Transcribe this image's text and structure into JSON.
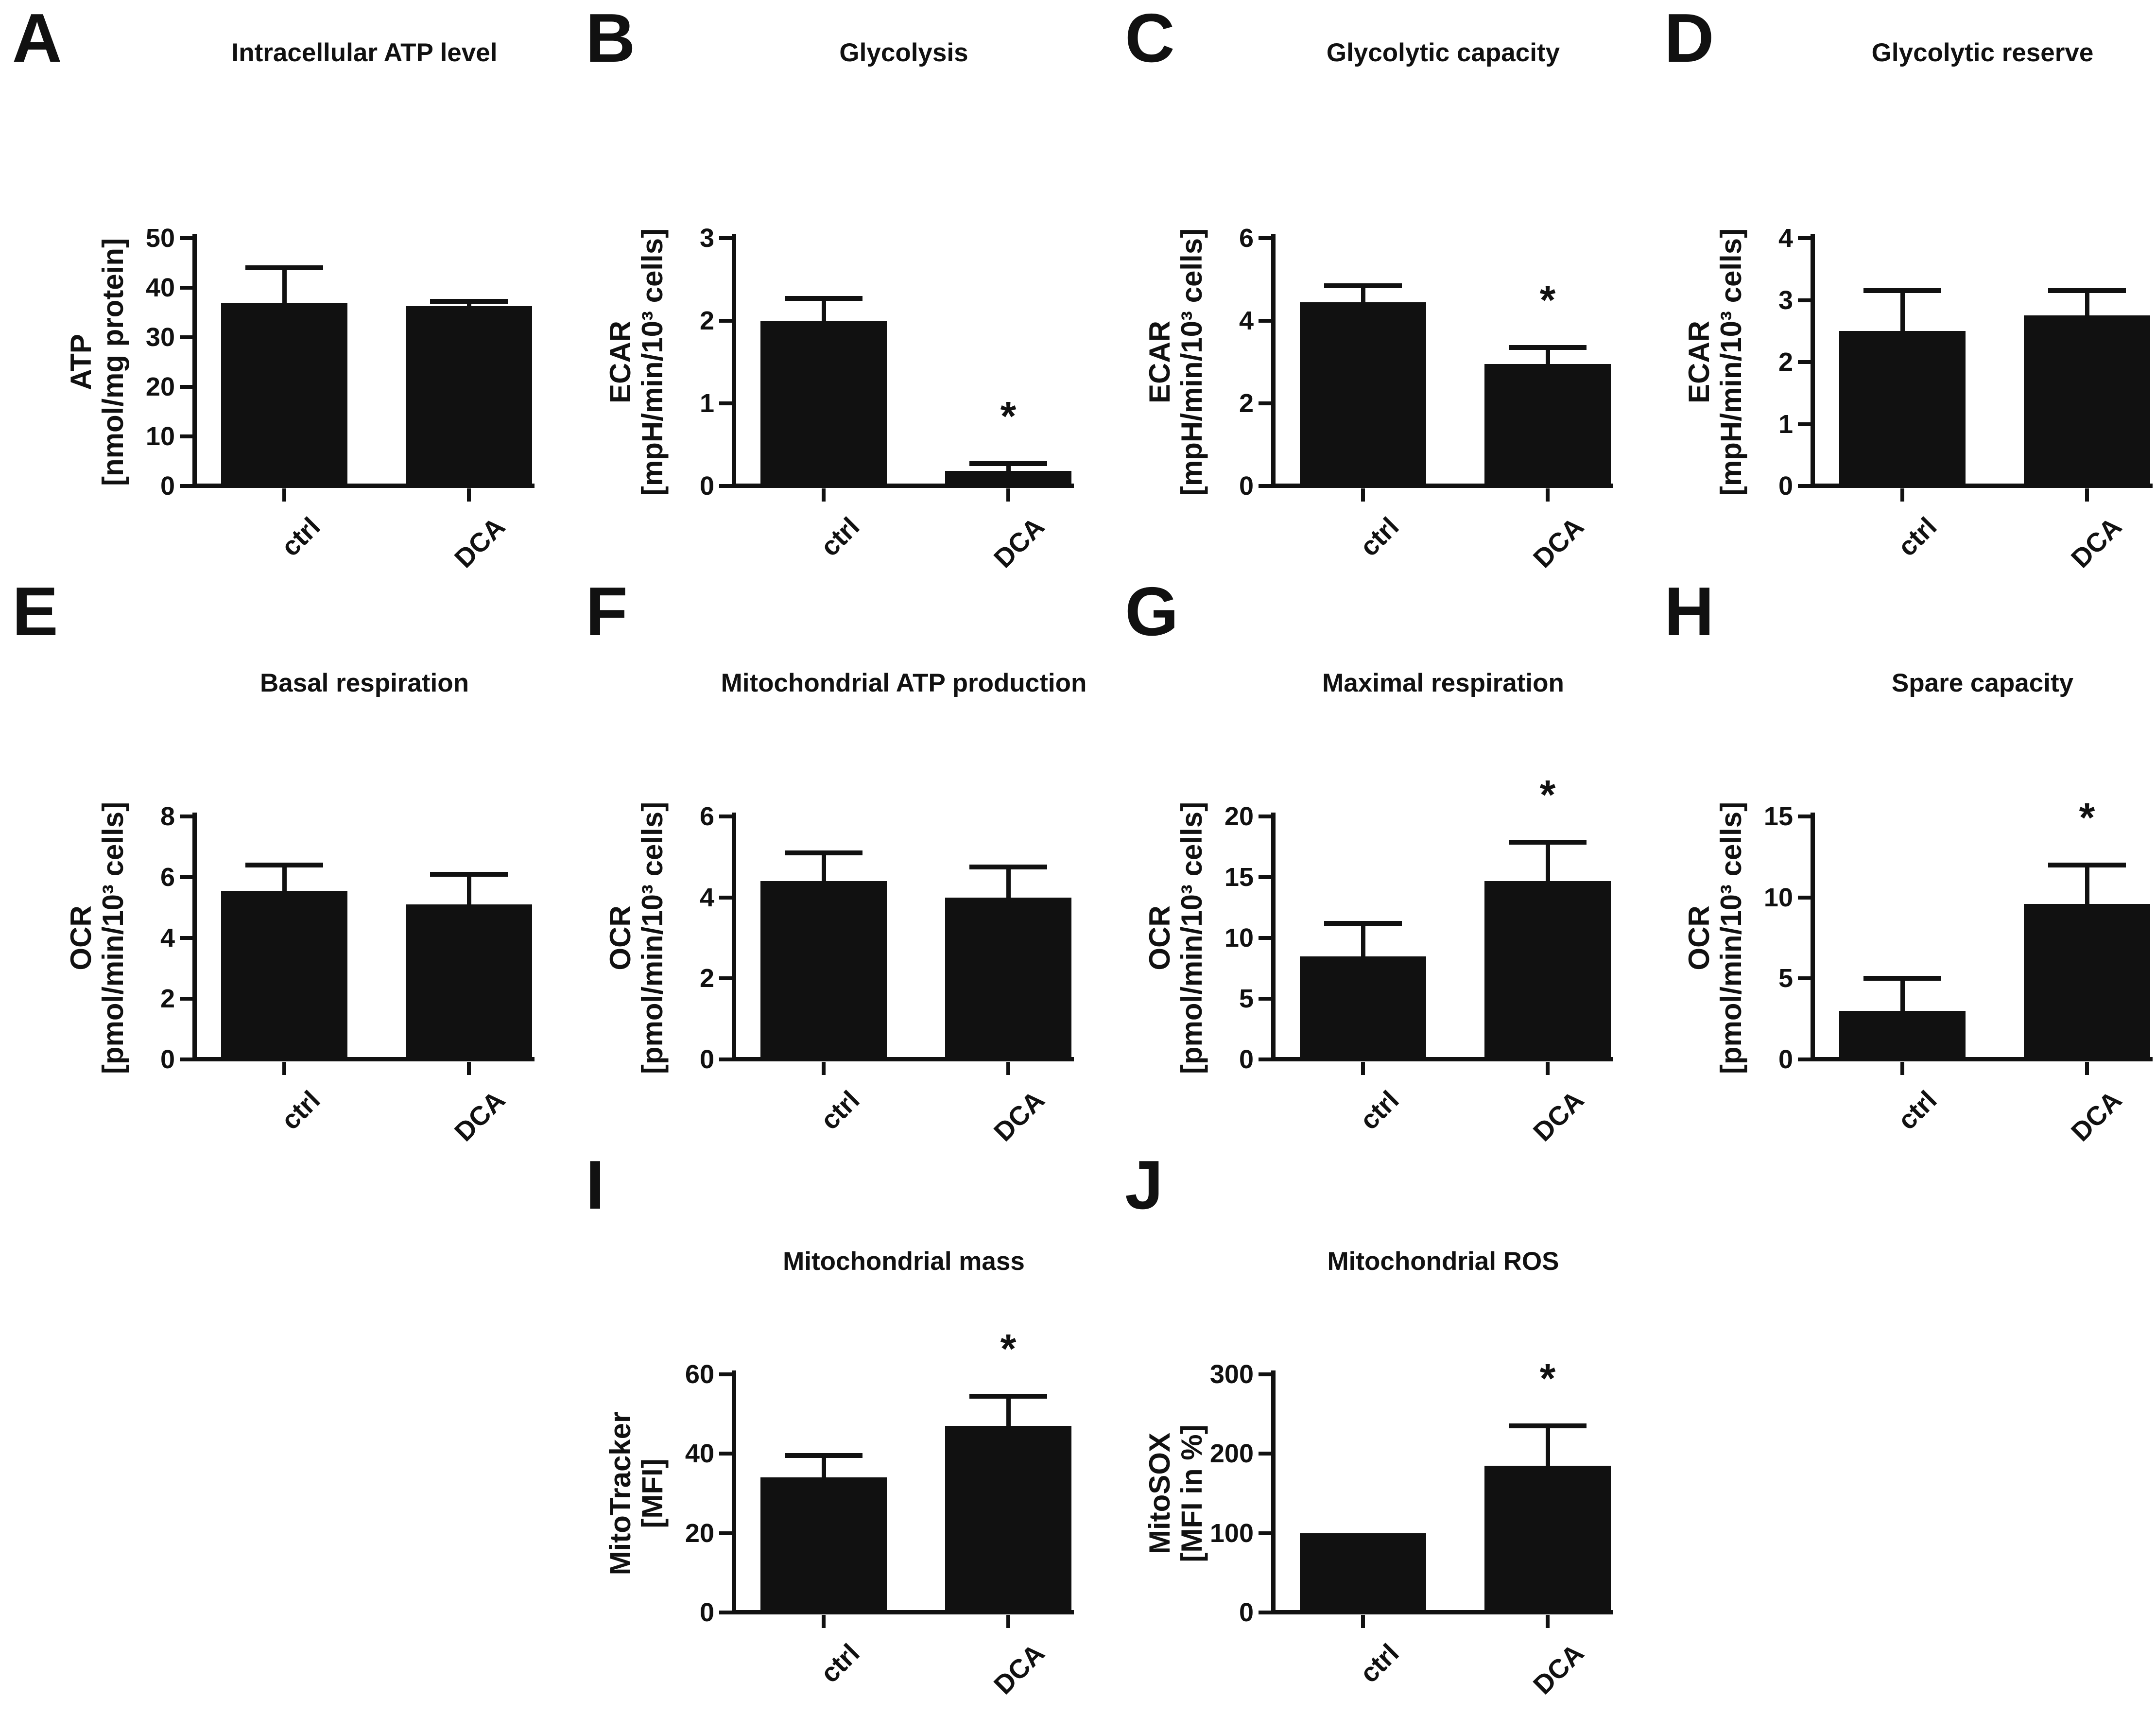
{
  "figure": {
    "background": "#ffffff",
    "ink": "#111111"
  },
  "categories": [
    "ctrl",
    "DCA"
  ],
  "chart_data": [
    {
      "panel": "A",
      "type": "bar",
      "title": "Intracellular ATP level",
      "ylabel": "ATP",
      "ylabel_unit": "[nmol/mg protein]",
      "ylim": [
        0,
        50
      ],
      "yticks": [
        0,
        10,
        20,
        30,
        40,
        50
      ],
      "grid": false,
      "categories": [
        "ctrl",
        "DCA"
      ],
      "bars": [
        {
          "category": "ctrl",
          "value": 37,
          "err": 7,
          "sig": ""
        },
        {
          "category": "DCA",
          "value": 36.3,
          "err": 1,
          "sig": ""
        }
      ]
    },
    {
      "panel": "B",
      "type": "bar",
      "title": "Glycolysis",
      "ylabel": "ECAR",
      "ylabel_unit": "[mpH/min/10³ cells]",
      "ylim": [
        0,
        3
      ],
      "yticks": [
        0,
        1,
        2,
        3
      ],
      "grid": false,
      "categories": [
        "ctrl",
        "DCA"
      ],
      "bars": [
        {
          "category": "ctrl",
          "value": 2.0,
          "err": 0.27,
          "sig": ""
        },
        {
          "category": "DCA",
          "value": 0.18,
          "err": 0.09,
          "sig": "*"
        }
      ]
    },
    {
      "panel": "C",
      "type": "bar",
      "title": "Glycolytic capacity",
      "ylabel": "ECAR",
      "ylabel_unit": "[mpH/min/10³ cells]",
      "ylim": [
        0,
        6
      ],
      "yticks": [
        0,
        2,
        4,
        6
      ],
      "grid": false,
      "categories": [
        "ctrl",
        "DCA"
      ],
      "bars": [
        {
          "category": "ctrl",
          "value": 4.45,
          "err": 0.4,
          "sig": ""
        },
        {
          "category": "DCA",
          "value": 2.95,
          "err": 0.4,
          "sig": "*"
        }
      ]
    },
    {
      "panel": "D",
      "type": "bar",
      "title": "Glycolytic reserve",
      "ylabel": "ECAR",
      "ylabel_unit": "[mpH/min/10³ cells]",
      "ylim": [
        0,
        4
      ],
      "yticks": [
        0,
        1,
        2,
        3,
        4
      ],
      "grid": false,
      "categories": [
        "ctrl",
        "DCA"
      ],
      "bars": [
        {
          "category": "ctrl",
          "value": 2.5,
          "err": 0.65,
          "sig": ""
        },
        {
          "category": "DCA",
          "value": 2.75,
          "err": 0.4,
          "sig": ""
        }
      ]
    },
    {
      "panel": "E",
      "type": "bar",
      "title": "Basal respiration",
      "ylabel": "OCR",
      "ylabel_unit": "[pmol/min/10³ cells]",
      "ylim": [
        0,
        8
      ],
      "yticks": [
        0,
        2,
        4,
        6,
        8
      ],
      "grid": false,
      "categories": [
        "ctrl",
        "DCA"
      ],
      "bars": [
        {
          "category": "ctrl",
          "value": 5.55,
          "err": 0.85,
          "sig": ""
        },
        {
          "category": "DCA",
          "value": 5.1,
          "err": 1.0,
          "sig": ""
        }
      ]
    },
    {
      "panel": "F",
      "type": "bar",
      "title": "Mitochondrial ATP production",
      "ylabel": "OCR",
      "ylabel_unit": "[pmol/min/10³ cells]",
      "ylim": [
        0,
        6
      ],
      "yticks": [
        0,
        2,
        4,
        6
      ],
      "grid": false,
      "categories": [
        "ctrl",
        "DCA"
      ],
      "bars": [
        {
          "category": "ctrl",
          "value": 4.4,
          "err": 0.7,
          "sig": ""
        },
        {
          "category": "DCA",
          "value": 4.0,
          "err": 0.75,
          "sig": ""
        }
      ]
    },
    {
      "panel": "G",
      "type": "bar",
      "title": "Maximal respiration",
      "ylabel": "OCR",
      "ylabel_unit": "[pmol/min/10³ cells]",
      "ylim": [
        0,
        20
      ],
      "yticks": [
        0,
        5,
        10,
        15,
        20
      ],
      "grid": false,
      "categories": [
        "ctrl",
        "DCA"
      ],
      "bars": [
        {
          "category": "ctrl",
          "value": 8.5,
          "err": 2.7,
          "sig": ""
        },
        {
          "category": "DCA",
          "value": 14.7,
          "err": 3.2,
          "sig": "*"
        }
      ]
    },
    {
      "panel": "H",
      "type": "bar",
      "title": "Spare capacity",
      "ylabel": "OCR",
      "ylabel_unit": "[pmol/min/10³ cells]",
      "ylim": [
        0,
        15
      ],
      "yticks": [
        0,
        5,
        10,
        15
      ],
      "grid": false,
      "categories": [
        "ctrl",
        "DCA"
      ],
      "bars": [
        {
          "category": "ctrl",
          "value": 3.0,
          "err": 2.0,
          "sig": ""
        },
        {
          "category": "DCA",
          "value": 9.6,
          "err": 2.4,
          "sig": "*"
        }
      ]
    },
    {
      "panel": "I",
      "type": "bar",
      "title": "Mitochondrial mass",
      "ylabel": "MitoTracker",
      "ylabel_unit": "[MFI]",
      "ylim": [
        0,
        60
      ],
      "yticks": [
        0,
        20,
        40,
        60
      ],
      "grid": false,
      "categories": [
        "ctrl",
        "DCA"
      ],
      "bars": [
        {
          "category": "ctrl",
          "value": 34,
          "err": 5.5,
          "sig": ""
        },
        {
          "category": "DCA",
          "value": 47,
          "err": 7.5,
          "sig": "*"
        }
      ]
    },
    {
      "panel": "J",
      "type": "bar",
      "title": "Mitochondrial ROS",
      "ylabel": "MitoSOX",
      "ylabel_unit": "[MFI in %]",
      "ylim": [
        0,
        300
      ],
      "yticks": [
        0,
        100,
        200,
        300
      ],
      "grid": false,
      "categories": [
        "ctrl",
        "DCA"
      ],
      "bars": [
        {
          "category": "ctrl",
          "value": 100,
          "err": 0,
          "sig": ""
        },
        {
          "category": "DCA",
          "value": 185,
          "err": 50,
          "sig": "*"
        }
      ]
    }
  ]
}
